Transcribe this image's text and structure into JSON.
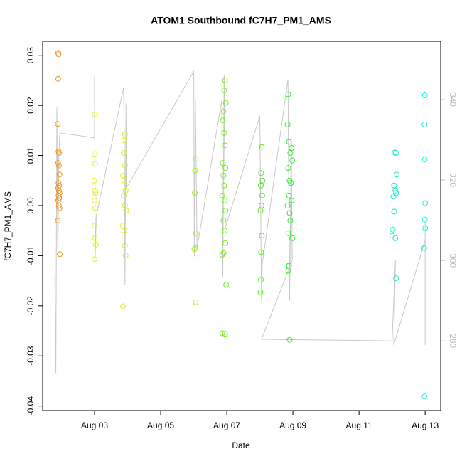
{
  "chart_data": {
    "type": "scatter",
    "title": "ATOM1 Southbound fC7H7_PM1_AMS",
    "xlabel": "Date",
    "ylabel": "fC7H7_PM1_AMS",
    "xlim": [
      1.43,
      13.47
    ],
    "ylim": [
      -0.0409,
      0.0328
    ],
    "y2lim": [
      262.7,
      354.5
    ],
    "xticks": [
      {
        "value": 3,
        "label": "Aug 03"
      },
      {
        "value": 5,
        "label": "Aug 05"
      },
      {
        "value": 7,
        "label": "Aug 07"
      },
      {
        "value": 9,
        "label": "Aug 09"
      },
      {
        "value": 11,
        "label": "Aug 11"
      },
      {
        "value": 13,
        "label": "Aug 13"
      }
    ],
    "yticks": [
      -0.04,
      -0.03,
      -0.02,
      -0.01,
      {
        "value": 0,
        "label": "0.00"
      },
      0.01,
      0.02,
      0.03
    ],
    "y2ticks": [
      280,
      300,
      320,
      340
    ],
    "series": [
      {
        "color": "#f29a1c",
        "x": [
          1.9,
          1.91,
          1.9,
          1.89,
          1.91,
          1.93,
          1.9,
          1.92,
          1.94,
          1.91,
          1.93,
          1.9,
          1.92,
          1.94,
          1.91,
          1.93,
          1.9,
          1.92,
          1.94,
          1.89,
          1.95
        ],
        "values": [
          0.0305,
          0.0302,
          0.0253,
          0.0163,
          0.0108,
          0.0105,
          0.0085,
          0.008,
          0.0062,
          0.0045,
          0.004,
          0.0035,
          0.003,
          0.0025,
          0.002,
          0.0015,
          0.001,
          0.0,
          -0.0005,
          -0.003,
          -0.0097
        ]
      },
      {
        "color": "#e6ef1e",
        "x": [
          3.01,
          3.0,
          3.02,
          2.99,
          3.01,
          3.03,
          3.0,
          3.02,
          3.0,
          3.01,
          3.04,
          3.0
        ],
        "values": [
          0.0182,
          0.0103,
          0.0083,
          0.005,
          0.003,
          0.0025,
          0.001,
          -0.0005,
          -0.004,
          -0.0065,
          -0.0078,
          -0.0107
        ]
      },
      {
        "color": "#d6f21e",
        "x": [
          3.92,
          3.9,
          3.88,
          3.92,
          3.86,
          3.9,
          3.94,
          3.88,
          3.92,
          3.96,
          3.86,
          3.9,
          3.92,
          3.94,
          3.86
        ],
        "values": [
          0.0142,
          0.013,
          0.0105,
          0.008,
          0.006,
          0.005,
          0.003,
          0.002,
          0.0,
          -0.001,
          -0.004,
          -0.005,
          -0.008,
          -0.01,
          -0.0201
        ]
      },
      {
        "color": "#a6ee1e",
        "x": [
          6.06,
          6.04,
          6.03,
          6.07,
          6.05,
          6.02,
          6.06
        ],
        "values": [
          0.0093,
          0.007,
          0.0025,
          -0.0055,
          -0.0085,
          -0.0087,
          -0.0193
        ]
      },
      {
        "color": "#78ee1e",
        "x": [
          6.95,
          6.92,
          6.97,
          6.9,
          6.88,
          6.92,
          6.94,
          6.88,
          6.96,
          6.9,
          6.92,
          6.86,
          6.94,
          6.96,
          6.9,
          6.94,
          6.96,
          6.9,
          6.86,
          6.98,
          6.86,
          6.95
        ],
        "values": [
          0.025,
          0.023,
          0.0205,
          0.0188,
          0.017,
          0.0145,
          0.012,
          0.0085,
          0.0075,
          0.006,
          0.004,
          0.002,
          0.001,
          -0.001,
          -0.003,
          -0.005,
          -0.0075,
          -0.0095,
          -0.0098,
          -0.0158,
          -0.0255,
          -0.0256
        ]
      },
      {
        "color": "#4cee1e",
        "x": [
          8.06,
          8.04,
          8.08,
          8.03,
          8.07,
          8.05,
          8.02,
          8.06,
          8.04,
          8.03,
          8.02
        ],
        "values": [
          0.0117,
          0.0065,
          0.005,
          0.004,
          0.002,
          0.0,
          -0.001,
          -0.006,
          -0.0093,
          -0.0148,
          -0.0173
        ]
      },
      {
        "color": "#2aee28",
        "x": [
          8.86,
          8.84,
          8.88,
          8.96,
          8.92,
          8.98,
          8.86,
          8.9,
          8.94,
          8.88,
          8.96,
          8.84,
          8.9,
          8.92,
          8.86,
          8.98,
          8.88,
          8.86,
          8.9
        ],
        "values": [
          0.0222,
          0.0162,
          0.0127,
          0.0115,
          0.0105,
          0.009,
          0.0075,
          0.005,
          0.0045,
          0.002,
          0.001,
          0.0,
          -0.0015,
          -0.003,
          -0.0055,
          -0.0065,
          -0.012,
          -0.013,
          -0.0268
        ]
      },
      {
        "color": "#1eeec2",
        "x": [
          12.08,
          12.12,
          12.14,
          12.06,
          12.1,
          12.12,
          12.04,
          12.06,
          12.02,
          12.1,
          12.0,
          12.12
        ],
        "values": [
          0.0106,
          0.0105,
          0.0062,
          0.004,
          0.003,
          0.0025,
          0.0018,
          -0.0012,
          -0.0048,
          -0.0065,
          -0.006,
          -0.0145
        ]
      },
      {
        "color": "#1eeedc",
        "x": [
          12.99,
          12.98,
          12.99,
          13.0,
          12.99,
          13.0,
          12.97,
          12.98
        ],
        "values": [
          0.022,
          0.0162,
          0.0092,
          0.0005,
          -0.0028,
          -0.0045,
          -0.0085,
          -0.0381
        ]
      },
      {
        "color": "#c8c8c8",
        "axis": "y2",
        "x": [
          1.8,
          1.83,
          1.86,
          1.89,
          1.92,
          1.95,
          3.0,
          3.0,
          3.02,
          3.05,
          3.88,
          3.9,
          3.92,
          3.95,
          3.96,
          6.0,
          6.02,
          6.05,
          6.1,
          6.85,
          6.88,
          6.92,
          6.95,
          8.0,
          8.05,
          8.07,
          8.85,
          8.9,
          8.95,
          8.98,
          8.05,
          12.0,
          12.1,
          12.05,
          13.0,
          13.0,
          13.0
        ],
        "values": [
          296,
          272,
          338,
          300,
          326,
          331.7,
          330.5,
          345.8,
          300.8,
          311,
          343,
          329.9,
          294,
          339,
          318,
          347,
          301,
          340,
          303,
          340,
          296,
          346,
          308,
          336,
          290,
          299,
          345,
          290,
          330,
          300,
          280.4,
          280,
          300,
          279,
          305,
          279,
          310
        ]
      }
    ]
  }
}
